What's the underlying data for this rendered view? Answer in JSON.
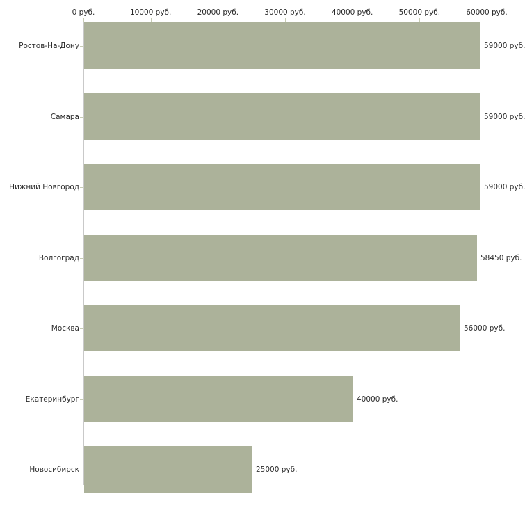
{
  "chart_data": {
    "type": "bar",
    "orientation": "horizontal",
    "categories": [
      "Ростов-На-Дону",
      "Самара",
      "Нижний Новгород",
      "Волгоград",
      "Москва",
      "Екатеринбург",
      "Новосибирск"
    ],
    "values": [
      59000,
      59000,
      59000,
      58450,
      56000,
      40000,
      25000
    ],
    "value_labels": [
      "59000 руб.",
      "59000 руб.",
      "59000 руб.",
      "58450 руб.",
      "56000 руб.",
      "40000 руб.",
      "25000 руб."
    ],
    "x_tick_values": [
      0,
      10000,
      20000,
      30000,
      40000,
      50000,
      60000
    ],
    "x_tick_labels": [
      "0 руб.",
      "10000 руб.",
      "20000 руб.",
      "30000 руб.",
      "40000 руб.",
      "50000 руб.",
      "60000 руб."
    ],
    "xlim": [
      0,
      60000
    ],
    "unit": "руб.",
    "grid": false,
    "legend": false,
    "colors": {
      "bar": "#acb29a",
      "axis": "#c9c9c9",
      "tick": "#c6cbb3",
      "text": "#2b2b2b",
      "background": "#ffffff"
    }
  }
}
